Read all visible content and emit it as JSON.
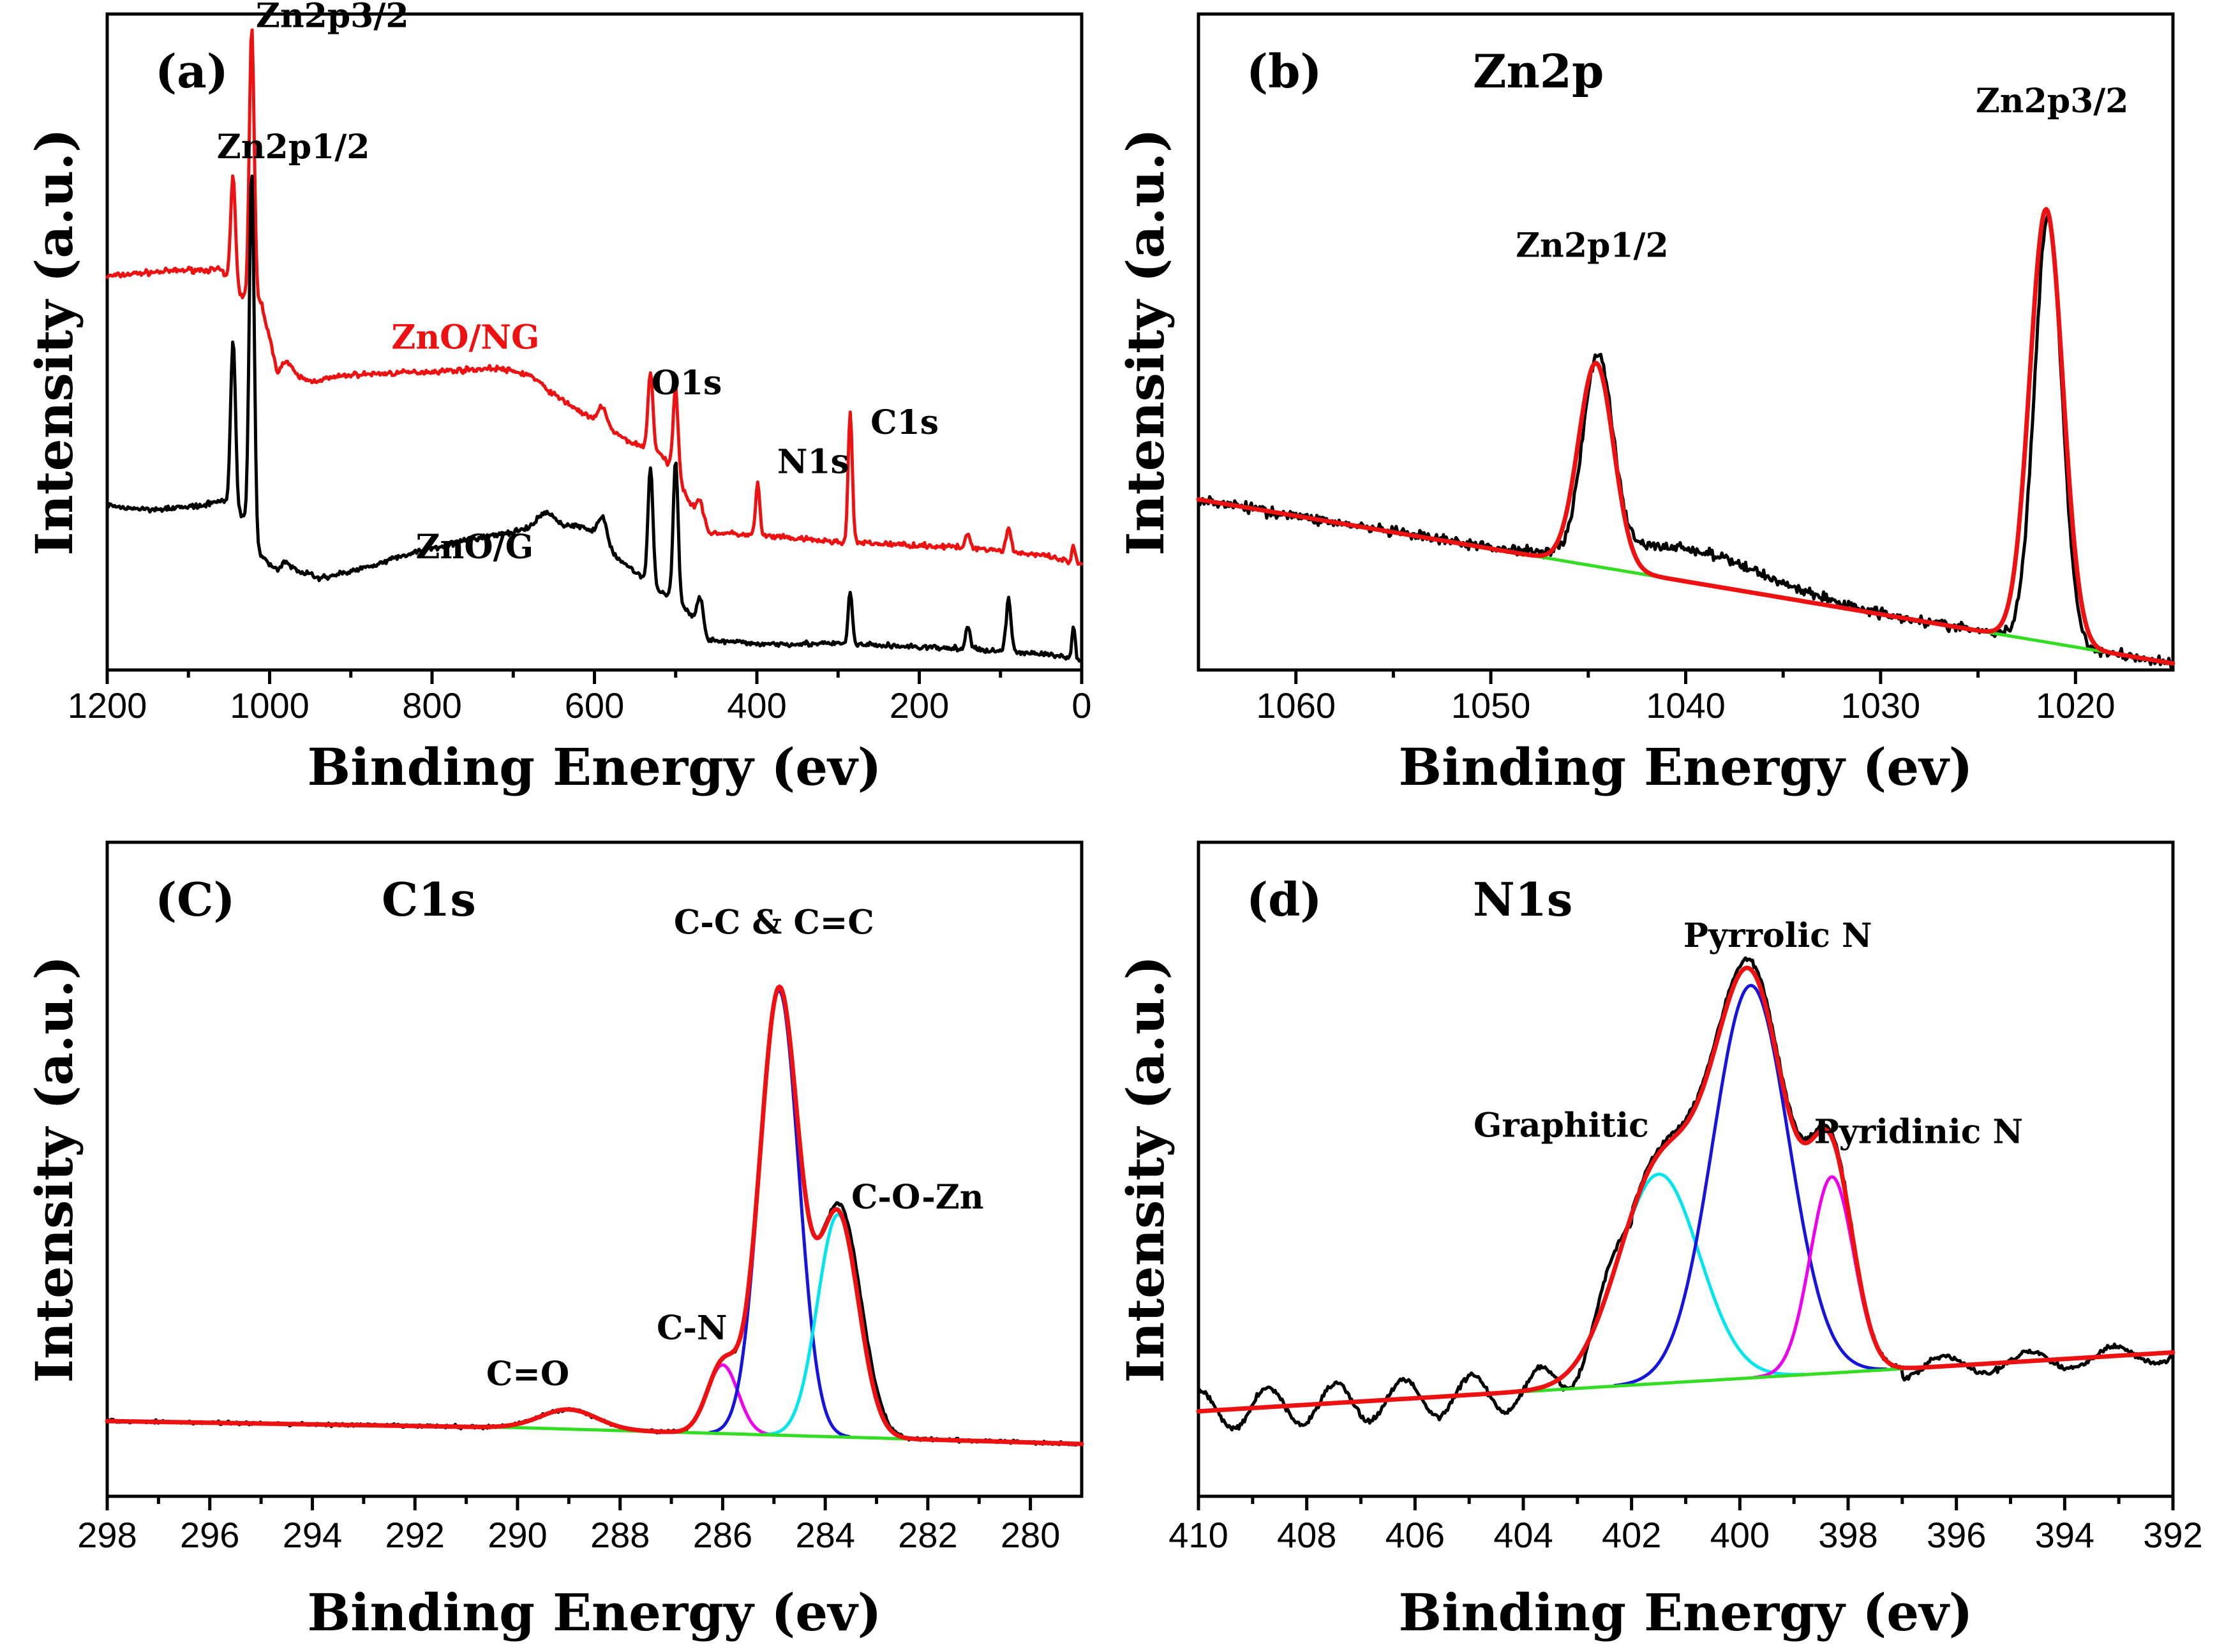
{
  "colors": {
    "data": "#000000",
    "fit": "#ee1111",
    "background_line": "#33dd22",
    "red_trace": "#ee1111",
    "cyan": "#00e5ee",
    "blue": "#1515dd",
    "magenta": "#ee00ee"
  },
  "chart_data": [
    {
      "id": "a",
      "type": "line",
      "panel_label": "(a)",
      "title": "",
      "xlabel": "Binding Energy (ev)",
      "ylabel": "Intensity (a.u.)",
      "xlim": [
        1200,
        0
      ],
      "x_reversed": true,
      "ylim": [
        0,
        100
      ],
      "xticks": [
        1200,
        1000,
        800,
        600,
        400,
        200,
        0
      ],
      "series": [
        {
          "name": "ZnO/NG",
          "color": "#ee1111",
          "label_text": "ZnO/NG",
          "baseline": [
            [
              1200,
              60
            ],
            [
              1160,
              60.5
            ],
            [
              1100,
              61
            ],
            [
              1060,
              61
            ],
            [
              1050,
              59
            ],
            [
              1035,
              57
            ],
            [
              1025,
              56
            ],
            [
              1010,
              56
            ],
            [
              990,
              45
            ],
            [
              970,
              45
            ],
            [
              950,
              44
            ],
            [
              900,
              45
            ],
            [
              800,
              45.5
            ],
            [
              720,
              46
            ],
            [
              680,
              45
            ],
            [
              650,
              42
            ],
            [
              600,
              38
            ],
            [
              560,
              35
            ],
            [
              520,
              33
            ],
            [
              500,
              30
            ],
            [
              480,
              25
            ],
            [
              460,
              21
            ],
            [
              400,
              20.5
            ],
            [
              300,
              19.5
            ],
            [
              200,
              19
            ],
            [
              120,
              18.5
            ],
            [
              50,
              17.5
            ],
            [
              0,
              16
            ]
          ],
          "peaks": [
            [
              1045,
              17,
              3
            ],
            [
              1022,
              42,
              3
            ],
            [
              980,
              2,
              6
            ],
            [
              590,
              3,
              5
            ],
            [
              531,
              12,
              3
            ],
            [
              500,
              13,
              3
            ],
            [
              470,
              3,
              4
            ],
            [
              399,
              8,
              2.5
            ],
            [
              285,
              20,
              2.5
            ],
            [
              140,
              2,
              3
            ],
            [
              90,
              3.5,
              3
            ],
            [
              10,
              2.5,
              2
            ]
          ]
        },
        {
          "name": "ZnO/G",
          "color": "#000000",
          "label_text": "ZnO/G",
          "baseline": [
            [
              1200,
              25
            ],
            [
              1150,
              24.5
            ],
            [
              1080,
              25
            ],
            [
              1060,
              26
            ],
            [
              1050,
              25
            ],
            [
              1030,
              23
            ],
            [
              1015,
              18
            ],
            [
              990,
              15
            ],
            [
              960,
              15
            ],
            [
              940,
              14
            ],
            [
              900,
              15
            ],
            [
              820,
              18
            ],
            [
              750,
              20
            ],
            [
              700,
              21
            ],
            [
              660,
              22
            ],
            [
              620,
              22
            ],
            [
              600,
              21
            ],
            [
              580,
              18
            ],
            [
              560,
              16
            ],
            [
              540,
              14
            ],
            [
              520,
              12
            ],
            [
              500,
              11
            ],
            [
              480,
              8
            ],
            [
              460,
              4.5
            ],
            [
              400,
              4
            ],
            [
              300,
              4
            ],
            [
              200,
              3.5
            ],
            [
              120,
              3
            ],
            [
              50,
              2.5
            ],
            [
              0,
              1.5
            ]
          ],
          "peaks": [
            [
              1045,
              26,
              3
            ],
            [
              1022,
              56,
              3
            ],
            [
              980,
              1.5,
              6
            ],
            [
              660,
              2,
              10
            ],
            [
              590,
              4,
              5
            ],
            [
              531,
              18,
              3
            ],
            [
              500,
              21,
              3
            ],
            [
              470,
              5,
              4
            ],
            [
              285,
              8,
              2.5
            ],
            [
              140,
              3.5,
              3
            ],
            [
              90,
              8,
              3
            ],
            [
              10,
              5,
              2
            ]
          ]
        }
      ],
      "annotations": [
        {
          "text": "Zn2p3/2",
          "x": 1017,
          "y": 98
        },
        {
          "text": "Zn2p1/2",
          "x": 1065,
          "y": 78
        },
        {
          "text": "O1s",
          "x": 530,
          "y": 42
        },
        {
          "text": "N1s",
          "x": 375,
          "y": 30
        },
        {
          "text": "C1s",
          "x": 260,
          "y": 36
        }
      ]
    },
    {
      "id": "b",
      "type": "line",
      "panel_label": "(b)",
      "title": "Zn2p",
      "xlabel": "Binding Energy (ev)",
      "ylabel": "Intensity (a.u.)",
      "xlim": [
        1065,
        1015
      ],
      "x_reversed": true,
      "ylim": [
        0,
        100
      ],
      "xticks": [
        1060,
        1050,
        1040,
        1030,
        1020
      ],
      "background": [
        [
          1065,
          26
        ],
        [
          1015,
          1
        ]
      ],
      "components": [
        {
          "name": "Zn2p1/2",
          "center": 1044.6,
          "amplitude": 31,
          "sigma": 0.9
        },
        {
          "name": "Zn2p3/2",
          "center": 1021.5,
          "amplitude": 66,
          "sigma": 0.85
        }
      ],
      "measured_peaks": [
        {
          "center": 1044.5,
          "amplitude": 30,
          "sigma": 0.75
        },
        {
          "center": 1021.4,
          "amplitude": 65,
          "sigma": 0.7
        },
        {
          "center": 1040,
          "amplitude": 5,
          "sigma": 4
        }
      ],
      "annotations": [
        {
          "text": "Zn2p1/2",
          "x": 1044.8,
          "y": 63
        },
        {
          "text": "Zn2p3/2",
          "x": 1021.2,
          "y": 85
        }
      ]
    },
    {
      "id": "c",
      "type": "line",
      "panel_label": "(C)",
      "title": "C1s",
      "xlabel": "Binding Energy (ev)",
      "ylabel": "Intensity (a.u.)",
      "xlim": [
        298,
        279
      ],
      "x_reversed": true,
      "ylim": [
        0,
        100
      ],
      "xticks": [
        298,
        296,
        294,
        292,
        290,
        288,
        286,
        284,
        282,
        280
      ],
      "background": [
        [
          298,
          11.5
        ],
        [
          290,
          10.5
        ],
        [
          279,
          8
        ]
      ],
      "components": [
        {
          "name": "C=O",
          "center": 289.0,
          "amplitude": 3,
          "sigma": 0.55
        },
        {
          "name": "C-N",
          "center": 286.0,
          "amplitude": 10.5,
          "sigma": 0.3
        },
        {
          "name": "C-C & C=C",
          "center": 284.9,
          "amplitude": 68,
          "sigma": 0.38
        },
        {
          "name": "C-O-Zn",
          "center": 283.75,
          "amplitude": 34,
          "sigma": 0.4
        }
      ],
      "annotations": [
        {
          "text": "C-C & C=C",
          "x": 285.0,
          "y": 86
        },
        {
          "text": "C-O-Zn",
          "x": 282.2,
          "y": 44
        },
        {
          "text": "C-N",
          "x": 286.6,
          "y": 24
        },
        {
          "text": "C=O",
          "x": 289.8,
          "y": 17
        }
      ]
    },
    {
      "id": "d",
      "type": "line",
      "panel_label": "(d)",
      "title": "N1s",
      "xlabel": "Binding Energy (ev)",
      "ylabel": "Intensity (a.u.)",
      "xlim": [
        410,
        392
      ],
      "x_reversed": true,
      "ylim": [
        0,
        100
      ],
      "xticks": [
        410,
        408,
        406,
        404,
        402,
        400,
        398,
        396,
        394,
        392
      ],
      "background": [
        [
          410,
          13
        ],
        [
          392,
          22
        ]
      ],
      "components": [
        {
          "name": "Graphitic",
          "center": 401.5,
          "amplitude": 32,
          "sigma": 0.75
        },
        {
          "name": "Pyrrolic N",
          "center": 399.8,
          "amplitude": 60,
          "sigma": 0.7
        },
        {
          "name": "Pyridinic N",
          "center": 398.3,
          "amplitude": 30,
          "sigma": 0.4
        }
      ],
      "annotations": [
        {
          "text": "Pyrrolic N",
          "x": 399.3,
          "y": 84
        },
        {
          "text": "Graphitic",
          "x": 403.3,
          "y": 55
        },
        {
          "text": "Pyridinic N",
          "x": 396.7,
          "y": 54
        }
      ]
    }
  ]
}
